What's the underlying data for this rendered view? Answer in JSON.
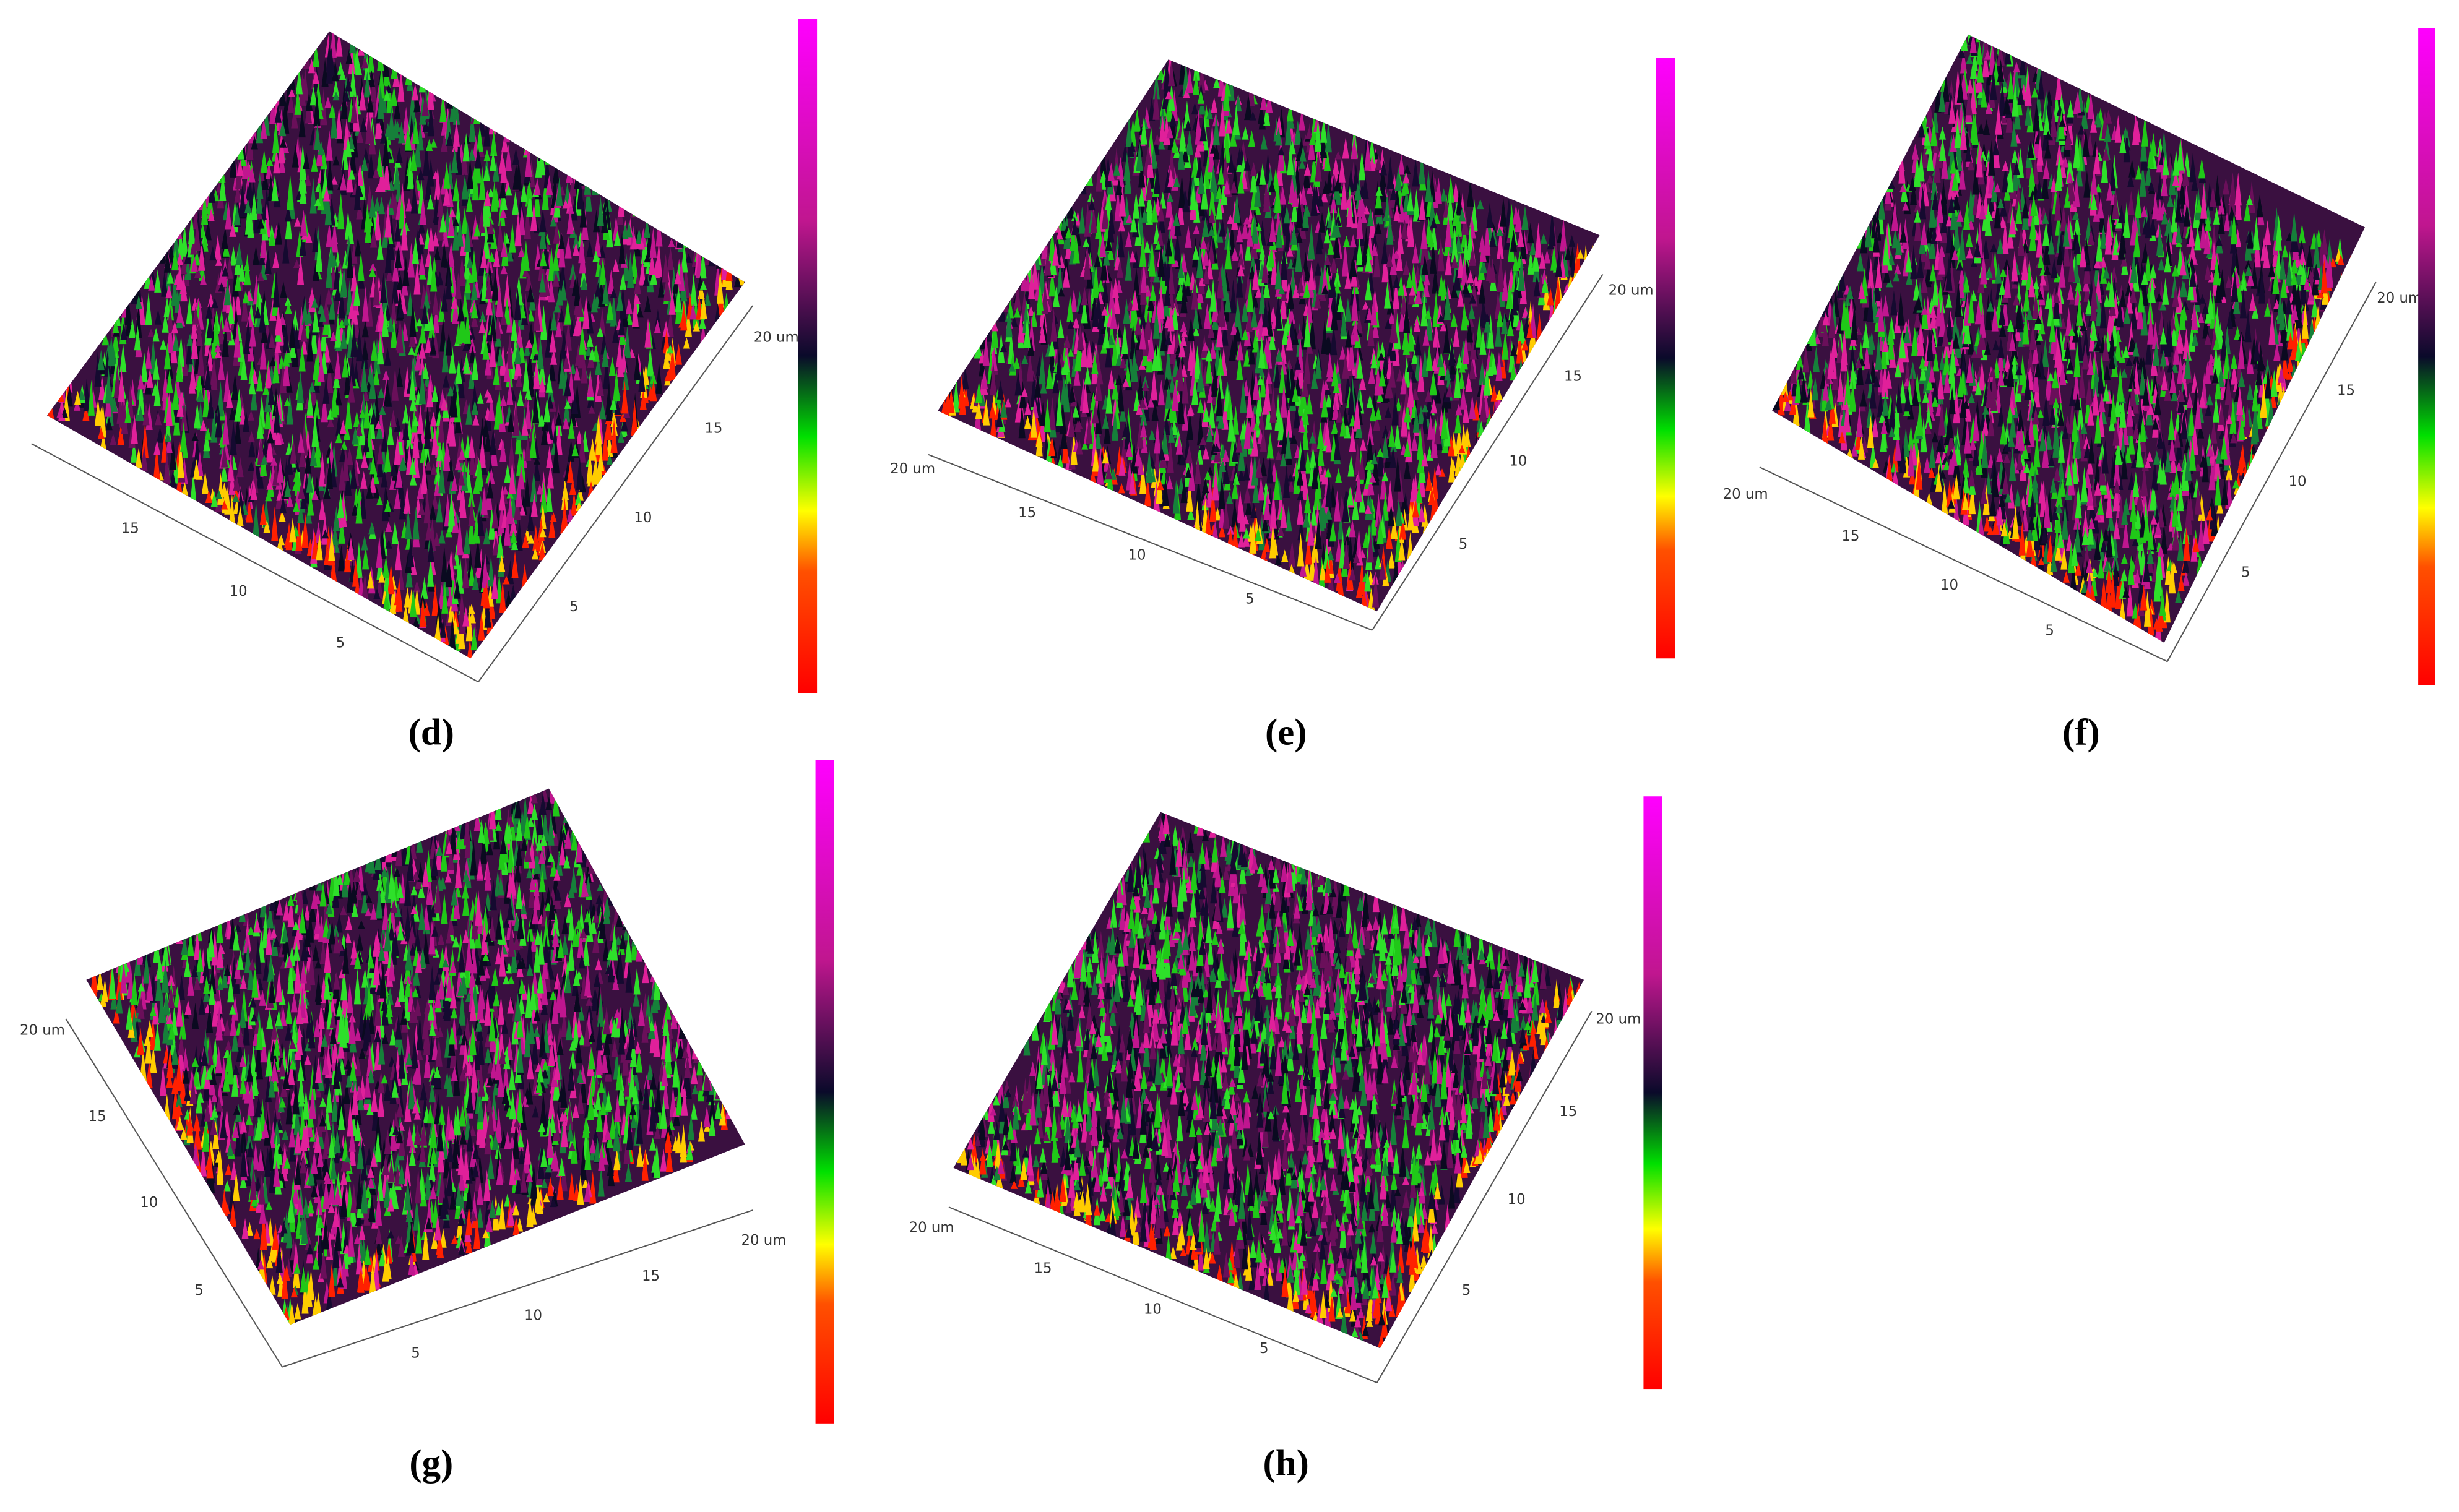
{
  "panels": [
    {
      "label": "(d)",
      "left_axis_ticks": [
        "15",
        "10",
        "5"
      ],
      "right_axis_ticks": [
        "5",
        "10",
        "15",
        "20 um"
      ]
    },
    {
      "label": "(e)",
      "left_axis_ticks": [
        "20 um",
        "15",
        "10",
        "5"
      ],
      "right_axis_ticks": [
        "5",
        "10",
        "15",
        "20 um"
      ]
    },
    {
      "label": "(f)",
      "left_axis_ticks": [
        "20 um",
        "15",
        "10",
        "5"
      ],
      "right_axis_ticks": [
        "5",
        "10",
        "15",
        "20 um"
      ]
    },
    {
      "label": "(g)",
      "left_axis_ticks": [
        "20 um",
        "15",
        "10",
        "5"
      ],
      "right_axis_ticks": [
        "5",
        "10",
        "15",
        "20 um"
      ]
    },
    {
      "label": "(h)",
      "left_axis_ticks": [
        "20 um",
        "15",
        "10",
        "5"
      ],
      "right_axis_ticks": [
        "5",
        "10",
        "15",
        "20 um"
      ]
    }
  ]
}
